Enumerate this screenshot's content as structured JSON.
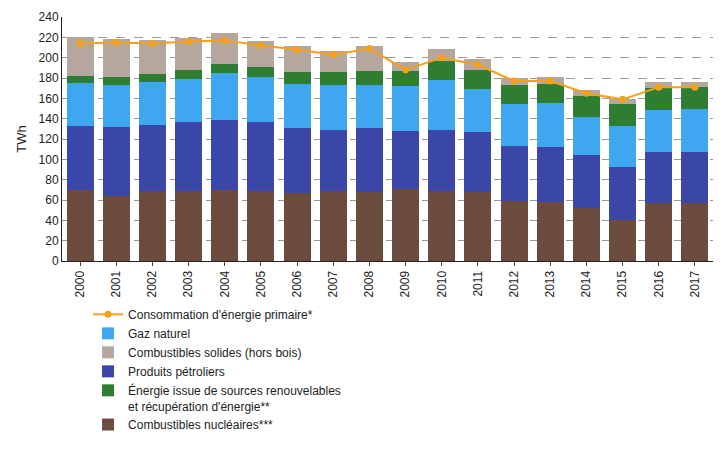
{
  "chart_data": {
    "type": "bar",
    "stacked": true,
    "grid": true,
    "legend": "bottom",
    "y_label": "TWh",
    "categories": [
      "2000",
      "2001",
      "2002",
      "2003",
      "2004",
      "2005",
      "2006",
      "2007",
      "2008",
      "2009",
      "2010",
      "2011",
      "2012",
      "2013",
      "2014",
      "2015",
      "2016",
      "2017"
    ],
    "ylim": [
      0,
      240
    ],
    "yticks": [
      0,
      20,
      40,
      60,
      80,
      100,
      120,
      140,
      160,
      180,
      200,
      220,
      240
    ],
    "series": [
      {
        "name": "Combustibles nucléaires***",
        "type": "bar",
        "color": "#6b4c3f",
        "values": [
          70,
          64,
          69,
          69,
          70,
          69,
          67,
          69,
          68,
          71,
          69,
          68,
          59,
          58,
          52,
          40,
          57,
          57
        ]
      },
      {
        "name": "Produits pétroliers",
        "type": "bar",
        "color": "#3a46a8",
        "values": [
          63,
          68,
          65,
          68,
          69,
          68,
          64,
          60,
          63,
          57,
          60,
          59,
          54,
          54,
          52,
          52,
          50,
          50
        ]
      },
      {
        "name": "Gaz naturel",
        "type": "bar",
        "color": "#3fa7f0",
        "values": [
          42,
          41,
          42,
          42,
          46,
          44,
          43,
          44,
          42,
          44,
          49,
          42,
          41,
          43,
          38,
          41,
          42,
          43
        ]
      },
      {
        "name": "Énergie issue de sources renouvelables\net récupération d'énergie**",
        "type": "bar",
        "color": "#2f7d32",
        "values": [
          7,
          8,
          8,
          9,
          9,
          10,
          12,
          13,
          14,
          15,
          19,
          19,
          19,
          19,
          20,
          21,
          21,
          21
        ]
      },
      {
        "name": "Combustibles solides (hors bois)",
        "type": "bar",
        "color": "#b5a69e",
        "values": [
          38,
          37,
          33,
          31,
          30,
          25,
          25,
          21,
          24,
          9,
          12,
          11,
          7,
          7,
          6,
          5,
          6,
          5
        ]
      },
      {
        "name": "Consommation d'énergie primaire*",
        "type": "line",
        "color": "#f5a01a",
        "marker": "circle",
        "values": [
          214,
          215,
          214,
          216,
          217,
          212,
          208,
          203,
          209,
          188,
          200,
          193,
          177,
          177,
          165,
          159,
          171,
          171
        ]
      }
    ]
  }
}
